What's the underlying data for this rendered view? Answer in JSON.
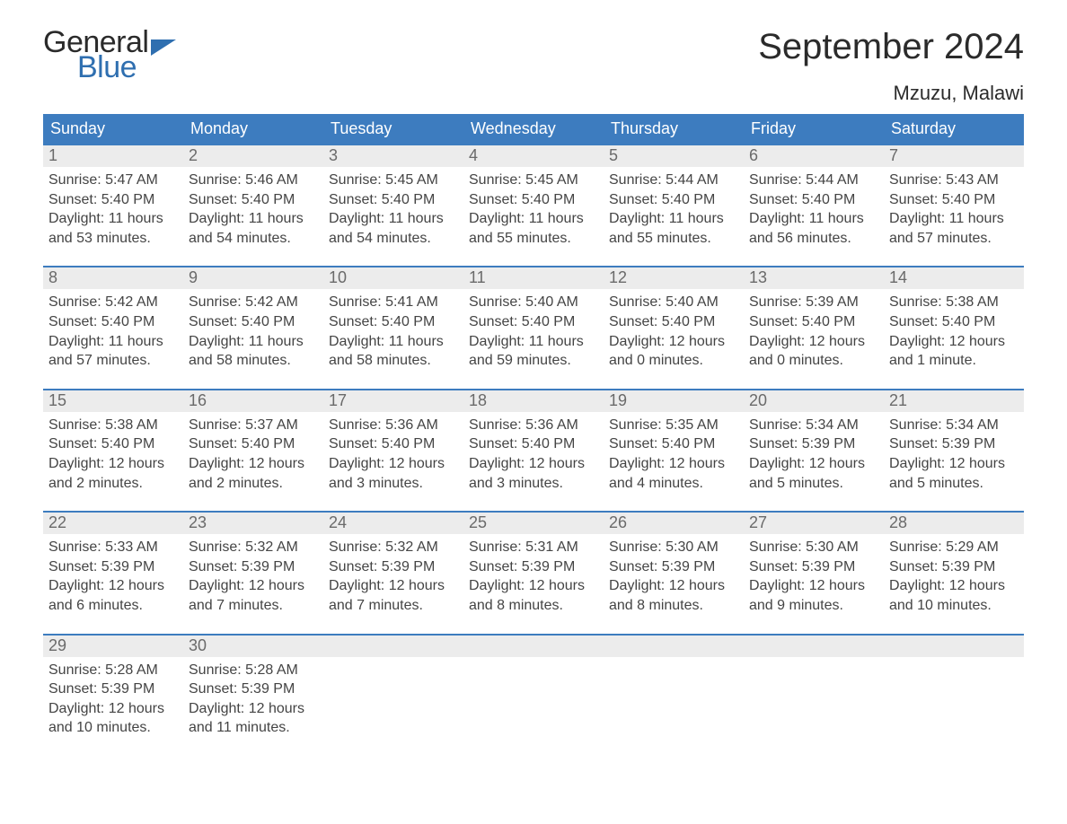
{
  "logo": {
    "word1": "General",
    "word2": "Blue"
  },
  "header": {
    "month_title": "September 2024",
    "location": "Mzuzu, Malawi"
  },
  "styling": {
    "page_bg": "#ffffff",
    "header_bar_bg": "#3d7cbf",
    "header_bar_text": "#ffffff",
    "daynum_bg": "#ececec",
    "daynum_text": "#6a6a6a",
    "body_text": "#444444",
    "week_border": "#3d7cbf",
    "month_title_fontsize": 40,
    "location_fontsize": 22,
    "weekday_fontsize": 18,
    "day_body_fontsize": 16,
    "logo_general_color": "#2a2a2a",
    "logo_blue_color": "#2f6fb0",
    "columns": 7
  },
  "weekdays": [
    "Sunday",
    "Monday",
    "Tuesday",
    "Wednesday",
    "Thursday",
    "Friday",
    "Saturday"
  ],
  "days": [
    {
      "n": "1",
      "sunrise": "Sunrise: 5:47 AM",
      "sunset": "Sunset: 5:40 PM",
      "daylight": "Daylight: 11 hours and 53 minutes."
    },
    {
      "n": "2",
      "sunrise": "Sunrise: 5:46 AM",
      "sunset": "Sunset: 5:40 PM",
      "daylight": "Daylight: 11 hours and 54 minutes."
    },
    {
      "n": "3",
      "sunrise": "Sunrise: 5:45 AM",
      "sunset": "Sunset: 5:40 PM",
      "daylight": "Daylight: 11 hours and 54 minutes."
    },
    {
      "n": "4",
      "sunrise": "Sunrise: 5:45 AM",
      "sunset": "Sunset: 5:40 PM",
      "daylight": "Daylight: 11 hours and 55 minutes."
    },
    {
      "n": "5",
      "sunrise": "Sunrise: 5:44 AM",
      "sunset": "Sunset: 5:40 PM",
      "daylight": "Daylight: 11 hours and 55 minutes."
    },
    {
      "n": "6",
      "sunrise": "Sunrise: 5:44 AM",
      "sunset": "Sunset: 5:40 PM",
      "daylight": "Daylight: 11 hours and 56 minutes."
    },
    {
      "n": "7",
      "sunrise": "Sunrise: 5:43 AM",
      "sunset": "Sunset: 5:40 PM",
      "daylight": "Daylight: 11 hours and 57 minutes."
    },
    {
      "n": "8",
      "sunrise": "Sunrise: 5:42 AM",
      "sunset": "Sunset: 5:40 PM",
      "daylight": "Daylight: 11 hours and 57 minutes."
    },
    {
      "n": "9",
      "sunrise": "Sunrise: 5:42 AM",
      "sunset": "Sunset: 5:40 PM",
      "daylight": "Daylight: 11 hours and 58 minutes."
    },
    {
      "n": "10",
      "sunrise": "Sunrise: 5:41 AM",
      "sunset": "Sunset: 5:40 PM",
      "daylight": "Daylight: 11 hours and 58 minutes."
    },
    {
      "n": "11",
      "sunrise": "Sunrise: 5:40 AM",
      "sunset": "Sunset: 5:40 PM",
      "daylight": "Daylight: 11 hours and 59 minutes."
    },
    {
      "n": "12",
      "sunrise": "Sunrise: 5:40 AM",
      "sunset": "Sunset: 5:40 PM",
      "daylight": "Daylight: 12 hours and 0 minutes."
    },
    {
      "n": "13",
      "sunrise": "Sunrise: 5:39 AM",
      "sunset": "Sunset: 5:40 PM",
      "daylight": "Daylight: 12 hours and 0 minutes."
    },
    {
      "n": "14",
      "sunrise": "Sunrise: 5:38 AM",
      "sunset": "Sunset: 5:40 PM",
      "daylight": "Daylight: 12 hours and 1 minute."
    },
    {
      "n": "15",
      "sunrise": "Sunrise: 5:38 AM",
      "sunset": "Sunset: 5:40 PM",
      "daylight": "Daylight: 12 hours and 2 minutes."
    },
    {
      "n": "16",
      "sunrise": "Sunrise: 5:37 AM",
      "sunset": "Sunset: 5:40 PM",
      "daylight": "Daylight: 12 hours and 2 minutes."
    },
    {
      "n": "17",
      "sunrise": "Sunrise: 5:36 AM",
      "sunset": "Sunset: 5:40 PM",
      "daylight": "Daylight: 12 hours and 3 minutes."
    },
    {
      "n": "18",
      "sunrise": "Sunrise: 5:36 AM",
      "sunset": "Sunset: 5:40 PM",
      "daylight": "Daylight: 12 hours and 3 minutes."
    },
    {
      "n": "19",
      "sunrise": "Sunrise: 5:35 AM",
      "sunset": "Sunset: 5:40 PM",
      "daylight": "Daylight: 12 hours and 4 minutes."
    },
    {
      "n": "20",
      "sunrise": "Sunrise: 5:34 AM",
      "sunset": "Sunset: 5:39 PM",
      "daylight": "Daylight: 12 hours and 5 minutes."
    },
    {
      "n": "21",
      "sunrise": "Sunrise: 5:34 AM",
      "sunset": "Sunset: 5:39 PM",
      "daylight": "Daylight: 12 hours and 5 minutes."
    },
    {
      "n": "22",
      "sunrise": "Sunrise: 5:33 AM",
      "sunset": "Sunset: 5:39 PM",
      "daylight": "Daylight: 12 hours and 6 minutes."
    },
    {
      "n": "23",
      "sunrise": "Sunrise: 5:32 AM",
      "sunset": "Sunset: 5:39 PM",
      "daylight": "Daylight: 12 hours and 7 minutes."
    },
    {
      "n": "24",
      "sunrise": "Sunrise: 5:32 AM",
      "sunset": "Sunset: 5:39 PM",
      "daylight": "Daylight: 12 hours and 7 minutes."
    },
    {
      "n": "25",
      "sunrise": "Sunrise: 5:31 AM",
      "sunset": "Sunset: 5:39 PM",
      "daylight": "Daylight: 12 hours and 8 minutes."
    },
    {
      "n": "26",
      "sunrise": "Sunrise: 5:30 AM",
      "sunset": "Sunset: 5:39 PM",
      "daylight": "Daylight: 12 hours and 8 minutes."
    },
    {
      "n": "27",
      "sunrise": "Sunrise: 5:30 AM",
      "sunset": "Sunset: 5:39 PM",
      "daylight": "Daylight: 12 hours and 9 minutes."
    },
    {
      "n": "28",
      "sunrise": "Sunrise: 5:29 AM",
      "sunset": "Sunset: 5:39 PM",
      "daylight": "Daylight: 12 hours and 10 minutes."
    },
    {
      "n": "29",
      "sunrise": "Sunrise: 5:28 AM",
      "sunset": "Sunset: 5:39 PM",
      "daylight": "Daylight: 12 hours and 10 minutes."
    },
    {
      "n": "30",
      "sunrise": "Sunrise: 5:28 AM",
      "sunset": "Sunset: 5:39 PM",
      "daylight": "Daylight: 12 hours and 11 minutes."
    }
  ]
}
